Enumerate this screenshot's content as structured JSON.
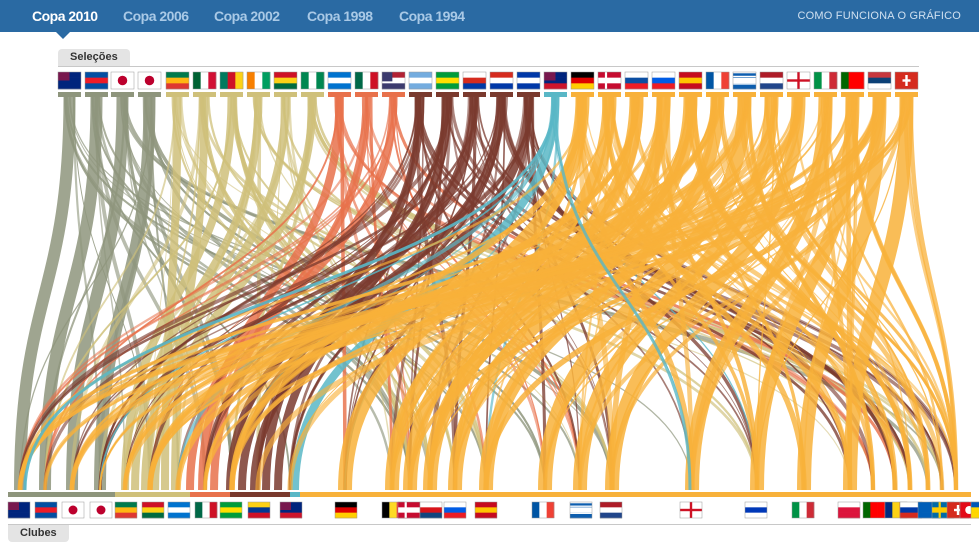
{
  "nav": {
    "tabs": [
      {
        "label": "Copa 2010",
        "active": true
      },
      {
        "label": "Copa 2006",
        "active": false
      },
      {
        "label": "Copa 2002",
        "active": false
      },
      {
        "label": "Copa 1998",
        "active": false
      },
      {
        "label": "Copa 1994",
        "active": false
      }
    ],
    "help_label": "COMO FUNCIONA O GRÁFICO"
  },
  "sections": {
    "top_label": "Seleções",
    "bottom_label": "Clubes"
  },
  "colors": {
    "header": "#2a6aa3",
    "asia": "#8e957c",
    "africa": "#cfc07a",
    "concacaf": "#e8714b",
    "south_america": "#7a3a2e",
    "oceania": "#59b7c6",
    "europe": "#f8b13a"
  },
  "chart_data": {
    "type": "flow",
    "source_axis": "Seleções",
    "target_axis": "Clubes",
    "source_groups": [
      {
        "group": "asia",
        "color": "#8e957c",
        "count": 4,
        "flag_icons": [
          "australia-flag-icon",
          "north-korea-flag-icon",
          "south-korea-flag-icon",
          "japan-flag-icon"
        ]
      },
      {
        "group": "africa",
        "color": "#cfc07a",
        "count": 6,
        "flag_icons": [
          "south-africa-flag-icon",
          "algeria-flag-icon",
          "cameroon-flag-icon",
          "ivory-coast-flag-icon",
          "ghana-flag-icon",
          "nigeria-flag-icon"
        ]
      },
      {
        "group": "concacaf",
        "color": "#e8714b",
        "count": 3,
        "flag_icons": [
          "honduras-flag-icon",
          "mexico-flag-icon",
          "usa-flag-icon"
        ]
      },
      {
        "group": "south_america",
        "color": "#7a3a2e",
        "count": 5,
        "flag_icons": [
          "argentina-flag-icon",
          "brazil-flag-icon",
          "chile-flag-icon",
          "paraguay-flag-icon",
          "uruguay-flag-icon"
        ]
      },
      {
        "group": "oceania",
        "color": "#59b7c6",
        "count": 1,
        "flag_icons": [
          "new-zealand-flag-icon"
        ]
      },
      {
        "group": "europe",
        "color": "#f8b13a",
        "count": 13,
        "flag_icons": [
          "germany-flag-icon",
          "denmark-flag-icon",
          "slovakia-flag-icon",
          "slovenia-flag-icon",
          "spain-flag-icon",
          "france-flag-icon",
          "greece-flag-icon",
          "netherlands-flag-icon",
          "england-flag-icon",
          "italy-flag-icon",
          "portugal-flag-icon",
          "serbia-flag-icon",
          "switzerland-flag-icon"
        ]
      }
    ],
    "club_flags": [
      "australia-flag-icon",
      "north-korea-flag-icon",
      "south-korea-flag-icon",
      "japan-flag-icon",
      "south-africa-flag-icon",
      "ghana-flag-icon",
      "honduras-flag-icon",
      "mexico-flag-icon",
      "brazil-flag-icon",
      "colombia-flag-icon",
      "new-zealand-flag-icon",
      "germany-flag-icon",
      "belgium-flag-icon",
      "denmark-flag-icon",
      "czech-flag-icon",
      "slovenia-flag-icon",
      "spain-flag-icon",
      "france-flag-icon",
      "greece-flag-icon",
      "netherlands-flag-icon",
      "england-flag-icon",
      "israel-flag-icon",
      "italy-flag-icon",
      "poland-flag-icon",
      "portugal-flag-icon",
      "romania-flag-icon",
      "russia-flag-icon",
      "scotland-flag-icon",
      "sweden-flag-icon",
      "switzerland-flag-icon",
      "turkey-flag-icon",
      "ukraine-flag-icon"
    ]
  }
}
